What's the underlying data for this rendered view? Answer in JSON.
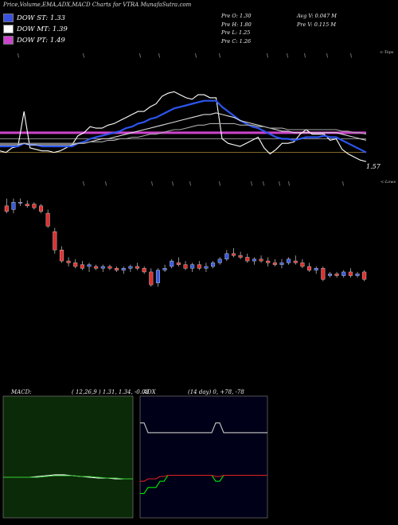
{
  "title": "Price,Volume,EMA,ADX,MACD Charts for VTRA MunafaSutra.com",
  "dow": [
    {
      "label": "DOW ST:",
      "value": "1.33",
      "color": "#3a52e0"
    },
    {
      "label": "DOW MT:",
      "value": "1.39",
      "color": "#ffffff"
    },
    {
      "label": "DOW PT:",
      "value": "1.49",
      "color": "#cc44cc"
    }
  ],
  "prev": {
    "open": "Pre  O: 1.30",
    "high": "Pre  H: 1.80",
    "low": "Pre  L: 1.25",
    "close": "Pre  C: 1.26",
    "avg_vol": "Avg V: 0.047 M",
    "pre_vol": "Pre  V: 0.115 M"
  },
  "edge_labels": {
    "top": "<-Tops",
    "bottom": "<-Lows"
  },
  "price_tag": "1.57",
  "macd": {
    "label": "MACD:",
    "params": "( 12,26,9 ) 1.31, 1.34, -0.03"
  },
  "adx": {
    "label": "ADX",
    "params": "(14  day) 0, +78, -78"
  },
  "chart_data": [
    {
      "type": "line",
      "name": "price-ema-panel",
      "series": [
        {
          "color": "#ffffff",
          "values": [
            1.58,
            1.57,
            1.6,
            1.61,
            1.84,
            1.6,
            1.59,
            1.58,
            1.58,
            1.57,
            1.58,
            1.6,
            1.62,
            1.68,
            1.7,
            1.74,
            1.73,
            1.73,
            1.75,
            1.76,
            1.78,
            1.8,
            1.82,
            1.84,
            1.84,
            1.87,
            1.89,
            1.94,
            1.96,
            1.97,
            1.95,
            1.93,
            1.92,
            1.95,
            1.95,
            1.93,
            1.93,
            1.66,
            1.63,
            1.62,
            1.61,
            1.63,
            1.65,
            1.67,
            1.6,
            1.56,
            1.59,
            1.63,
            1.63,
            1.64,
            1.69,
            1.72,
            1.69,
            1.69,
            1.69,
            1.65,
            1.66,
            1.59,
            1.56,
            1.54,
            1.52,
            1.51
          ]
        },
        {
          "color": "#2c55ee",
          "values": [
            1.61,
            1.61,
            1.61,
            1.61,
            1.63,
            1.62,
            1.62,
            1.61,
            1.61,
            1.61,
            1.61,
            1.61,
            1.61,
            1.63,
            1.64,
            1.66,
            1.67,
            1.68,
            1.69,
            1.7,
            1.71,
            1.73,
            1.74,
            1.76,
            1.77,
            1.79,
            1.8,
            1.82,
            1.84,
            1.86,
            1.87,
            1.88,
            1.89,
            1.9,
            1.91,
            1.91,
            1.91,
            1.87,
            1.84,
            1.81,
            1.78,
            1.76,
            1.74,
            1.73,
            1.71,
            1.69,
            1.67,
            1.66,
            1.66,
            1.65,
            1.66,
            1.67,
            1.67,
            1.67,
            1.68,
            1.67,
            1.67,
            1.65,
            1.63,
            1.61,
            1.59,
            1.57
          ]
        },
        {
          "color": "#dddddd",
          "values": [
            1.62,
            1.62,
            1.62,
            1.62,
            1.63,
            1.62,
            1.62,
            1.62,
            1.62,
            1.62,
            1.62,
            1.62,
            1.62,
            1.63,
            1.63,
            1.64,
            1.65,
            1.66,
            1.66,
            1.67,
            1.68,
            1.69,
            1.7,
            1.71,
            1.72,
            1.73,
            1.74,
            1.75,
            1.76,
            1.77,
            1.78,
            1.79,
            1.8,
            1.81,
            1.82,
            1.82,
            1.83,
            1.82,
            1.81,
            1.8,
            1.78,
            1.77,
            1.76,
            1.75,
            1.74,
            1.73,
            1.72,
            1.71,
            1.71,
            1.7,
            1.7,
            1.7,
            1.7,
            1.7,
            1.7,
            1.7,
            1.7,
            1.69,
            1.68,
            1.67,
            1.66,
            1.65
          ]
        },
        {
          "color": "#aaaaaa",
          "values": [
            1.63,
            1.63,
            1.63,
            1.63,
            1.63,
            1.63,
            1.63,
            1.63,
            1.63,
            1.63,
            1.63,
            1.63,
            1.63,
            1.63,
            1.63,
            1.64,
            1.64,
            1.64,
            1.65,
            1.65,
            1.66,
            1.66,
            1.67,
            1.67,
            1.68,
            1.69,
            1.69,
            1.7,
            1.71,
            1.72,
            1.72,
            1.73,
            1.74,
            1.75,
            1.75,
            1.76,
            1.76,
            1.76,
            1.76,
            1.76,
            1.75,
            1.75,
            1.75,
            1.74,
            1.74,
            1.73,
            1.73,
            1.73,
            1.72,
            1.72,
            1.72,
            1.72,
            1.72,
            1.72,
            1.72,
            1.72,
            1.72,
            1.71,
            1.71,
            1.7,
            1.7,
            1.69
          ]
        }
      ],
      "hlines": [
        {
          "color": "#cc44cc",
          "value": 1.7
        },
        {
          "color": "#999999",
          "value": 1.66
        },
        {
          "color": "#b08a3a",
          "value": 1.57
        }
      ],
      "ylim": [
        1.5,
        2.05
      ]
    },
    {
      "type": "candlestick",
      "name": "price-candles",
      "candles": [
        {
          "o": 1.64,
          "h": 1.68,
          "l": 1.6,
          "c": 1.61
        },
        {
          "o": 1.62,
          "h": 1.68,
          "l": 1.6,
          "c": 1.66
        },
        {
          "o": 1.66,
          "h": 1.68,
          "l": 1.64,
          "c": 1.66
        },
        {
          "o": 1.65,
          "h": 1.67,
          "l": 1.63,
          "c": 1.64
        },
        {
          "o": 1.65,
          "h": 1.66,
          "l": 1.62,
          "c": 1.63
        },
        {
          "o": 1.64,
          "h": 1.65,
          "l": 1.6,
          "c": 1.61
        },
        {
          "o": 1.6,
          "h": 1.62,
          "l": 1.52,
          "c": 1.53
        },
        {
          "o": 1.5,
          "h": 1.52,
          "l": 1.38,
          "c": 1.4
        },
        {
          "o": 1.4,
          "h": 1.42,
          "l": 1.33,
          "c": 1.34
        },
        {
          "o": 1.34,
          "h": 1.36,
          "l": 1.31,
          "c": 1.33
        },
        {
          "o": 1.33,
          "h": 1.35,
          "l": 1.3,
          "c": 1.31
        },
        {
          "o": 1.32,
          "h": 1.34,
          "l": 1.29,
          "c": 1.3
        },
        {
          "o": 1.31,
          "h": 1.33,
          "l": 1.28,
          "c": 1.32
        },
        {
          "o": 1.31,
          "h": 1.32,
          "l": 1.29,
          "c": 1.3
        },
        {
          "o": 1.3,
          "h": 1.32,
          "l": 1.28,
          "c": 1.31
        },
        {
          "o": 1.31,
          "h": 1.32,
          "l": 1.29,
          "c": 1.3
        },
        {
          "o": 1.3,
          "h": 1.31,
          "l": 1.28,
          "c": 1.29
        },
        {
          "o": 1.29,
          "h": 1.31,
          "l": 1.27,
          "c": 1.3
        },
        {
          "o": 1.3,
          "h": 1.32,
          "l": 1.28,
          "c": 1.31
        },
        {
          "o": 1.31,
          "h": 1.33,
          "l": 1.29,
          "c": 1.3
        },
        {
          "o": 1.3,
          "h": 1.31,
          "l": 1.27,
          "c": 1.28
        },
        {
          "o": 1.28,
          "h": 1.3,
          "l": 1.2,
          "c": 1.21
        },
        {
          "o": 1.22,
          "h": 1.3,
          "l": 1.2,
          "c": 1.29
        },
        {
          "o": 1.29,
          "h": 1.32,
          "l": 1.28,
          "c": 1.3
        },
        {
          "o": 1.31,
          "h": 1.35,
          "l": 1.3,
          "c": 1.34
        },
        {
          "o": 1.33,
          "h": 1.36,
          "l": 1.31,
          "c": 1.32
        },
        {
          "o": 1.32,
          "h": 1.34,
          "l": 1.29,
          "c": 1.3
        },
        {
          "o": 1.3,
          "h": 1.33,
          "l": 1.28,
          "c": 1.32
        },
        {
          "o": 1.32,
          "h": 1.34,
          "l": 1.29,
          "c": 1.3
        },
        {
          "o": 1.3,
          "h": 1.33,
          "l": 1.28,
          "c": 1.31
        },
        {
          "o": 1.31,
          "h": 1.34,
          "l": 1.3,
          "c": 1.33
        },
        {
          "o": 1.33,
          "h": 1.36,
          "l": 1.32,
          "c": 1.35
        },
        {
          "o": 1.35,
          "h": 1.4,
          "l": 1.34,
          "c": 1.38
        },
        {
          "o": 1.38,
          "h": 1.41,
          "l": 1.36,
          "c": 1.37
        },
        {
          "o": 1.37,
          "h": 1.39,
          "l": 1.35,
          "c": 1.36
        },
        {
          "o": 1.36,
          "h": 1.38,
          "l": 1.33,
          "c": 1.34
        },
        {
          "o": 1.34,
          "h": 1.36,
          "l": 1.32,
          "c": 1.35
        },
        {
          "o": 1.35,
          "h": 1.37,
          "l": 1.33,
          "c": 1.34
        },
        {
          "o": 1.34,
          "h": 1.36,
          "l": 1.31,
          "c": 1.33
        },
        {
          "o": 1.33,
          "h": 1.35,
          "l": 1.31,
          "c": 1.32
        },
        {
          "o": 1.32,
          "h": 1.35,
          "l": 1.3,
          "c": 1.33
        },
        {
          "o": 1.33,
          "h": 1.36,
          "l": 1.32,
          "c": 1.35
        },
        {
          "o": 1.34,
          "h": 1.37,
          "l": 1.32,
          "c": 1.33
        },
        {
          "o": 1.33,
          "h": 1.35,
          "l": 1.3,
          "c": 1.31
        },
        {
          "o": 1.31,
          "h": 1.33,
          "l": 1.28,
          "c": 1.29
        },
        {
          "o": 1.29,
          "h": 1.31,
          "l": 1.27,
          "c": 1.3
        },
        {
          "o": 1.3,
          "h": 1.31,
          "l": 1.23,
          "c": 1.24
        },
        {
          "o": 1.26,
          "h": 1.28,
          "l": 1.25,
          "c": 1.27
        },
        {
          "o": 1.27,
          "h": 1.28,
          "l": 1.25,
          "c": 1.26
        },
        {
          "o": 1.26,
          "h": 1.29,
          "l": 1.25,
          "c": 1.28
        },
        {
          "o": 1.28,
          "h": 1.3,
          "l": 1.25,
          "c": 1.26
        },
        {
          "o": 1.26,
          "h": 1.28,
          "l": 1.25,
          "c": 1.27
        },
        {
          "o": 1.28,
          "h": 1.29,
          "l": 1.23,
          "c": 1.24
        }
      ],
      "up_color": "#3a5ae0",
      "down_color": "#e03030"
    },
    {
      "type": "line",
      "name": "macd-panel",
      "series": [
        {
          "color": "#ffffff",
          "values": [
            0.0,
            0.0,
            0.0,
            0.0,
            0.01,
            0.02,
            0.03,
            0.03,
            0.02,
            0.01,
            0.0,
            -0.01,
            -0.01,
            -0.02,
            -0.02,
            -0.02
          ]
        },
        {
          "color": "#33cc33",
          "values": [
            0.0,
            0.0,
            0.0,
            0.0,
            0.0,
            0.01,
            0.02,
            0.02,
            0.02,
            0.01,
            0.01,
            0.0,
            -0.01,
            -0.01,
            -0.02,
            -0.02
          ]
        }
      ],
      "ylim": [
        -0.5,
        1.0
      ]
    },
    {
      "type": "line",
      "name": "adx-panel",
      "series": [
        {
          "color": "#cccccc",
          "values": [
            78,
            78,
            70,
            70,
            70,
            70,
            70,
            70,
            70,
            70,
            70,
            70,
            70,
            70,
            70,
            70,
            70,
            70,
            70,
            78,
            78,
            70,
            70,
            70,
            70,
            70,
            70,
            70,
            70,
            70,
            70,
            70,
            70
          ]
        },
        {
          "color": "#00ee00",
          "values": [
            20,
            20,
            25,
            25,
            25,
            30,
            30,
            35,
            35,
            35,
            35,
            35,
            35,
            35,
            35,
            35,
            35,
            35,
            35,
            30,
            30,
            35,
            35,
            35,
            35,
            35,
            35,
            35,
            35,
            35,
            35,
            35,
            35
          ]
        },
        {
          "color": "#dd2222",
          "values": [
            30,
            30,
            32,
            32,
            32,
            34,
            34,
            35,
            35,
            35,
            35,
            35,
            35,
            35,
            35,
            35,
            35,
            35,
            35,
            34,
            34,
            35,
            35,
            35,
            35,
            35,
            35,
            35,
            35,
            35,
            35,
            35,
            35
          ]
        }
      ],
      "ylim": [
        0,
        100
      ]
    }
  ]
}
